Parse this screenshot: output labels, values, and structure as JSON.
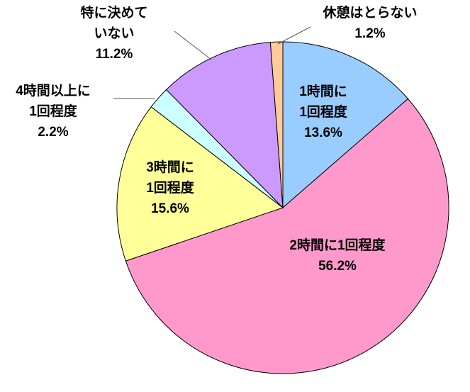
{
  "chart_data": {
    "type": "pie",
    "title": "",
    "slices": [
      {
        "label": "1時間に\n1回程度",
        "value": 13.6,
        "value_label": "13.6%",
        "color": "#99CCFF"
      },
      {
        "label": "2時間に1回程度",
        "value": 56.2,
        "value_label": "56.2%",
        "color": "#FF99CC"
      },
      {
        "label": "3時間に\n1回程度",
        "value": 15.6,
        "value_label": "15.6%",
        "color": "#FFFF99"
      },
      {
        "label": "4時間以上に\n1回程度",
        "value": 2.2,
        "value_label": "2.2%",
        "color": "#CCFFFF"
      },
      {
        "label": "特に決めて\nいない",
        "value": 11.2,
        "value_label": "11.2%",
        "color": "#CC99FF"
      },
      {
        "label": "休憩はとらない",
        "value": 1.2,
        "value_label": "1.2%",
        "color": "#FFCC99"
      }
    ],
    "start_angle": "12 o'clock",
    "direction": "clockwise",
    "legend": "none"
  }
}
